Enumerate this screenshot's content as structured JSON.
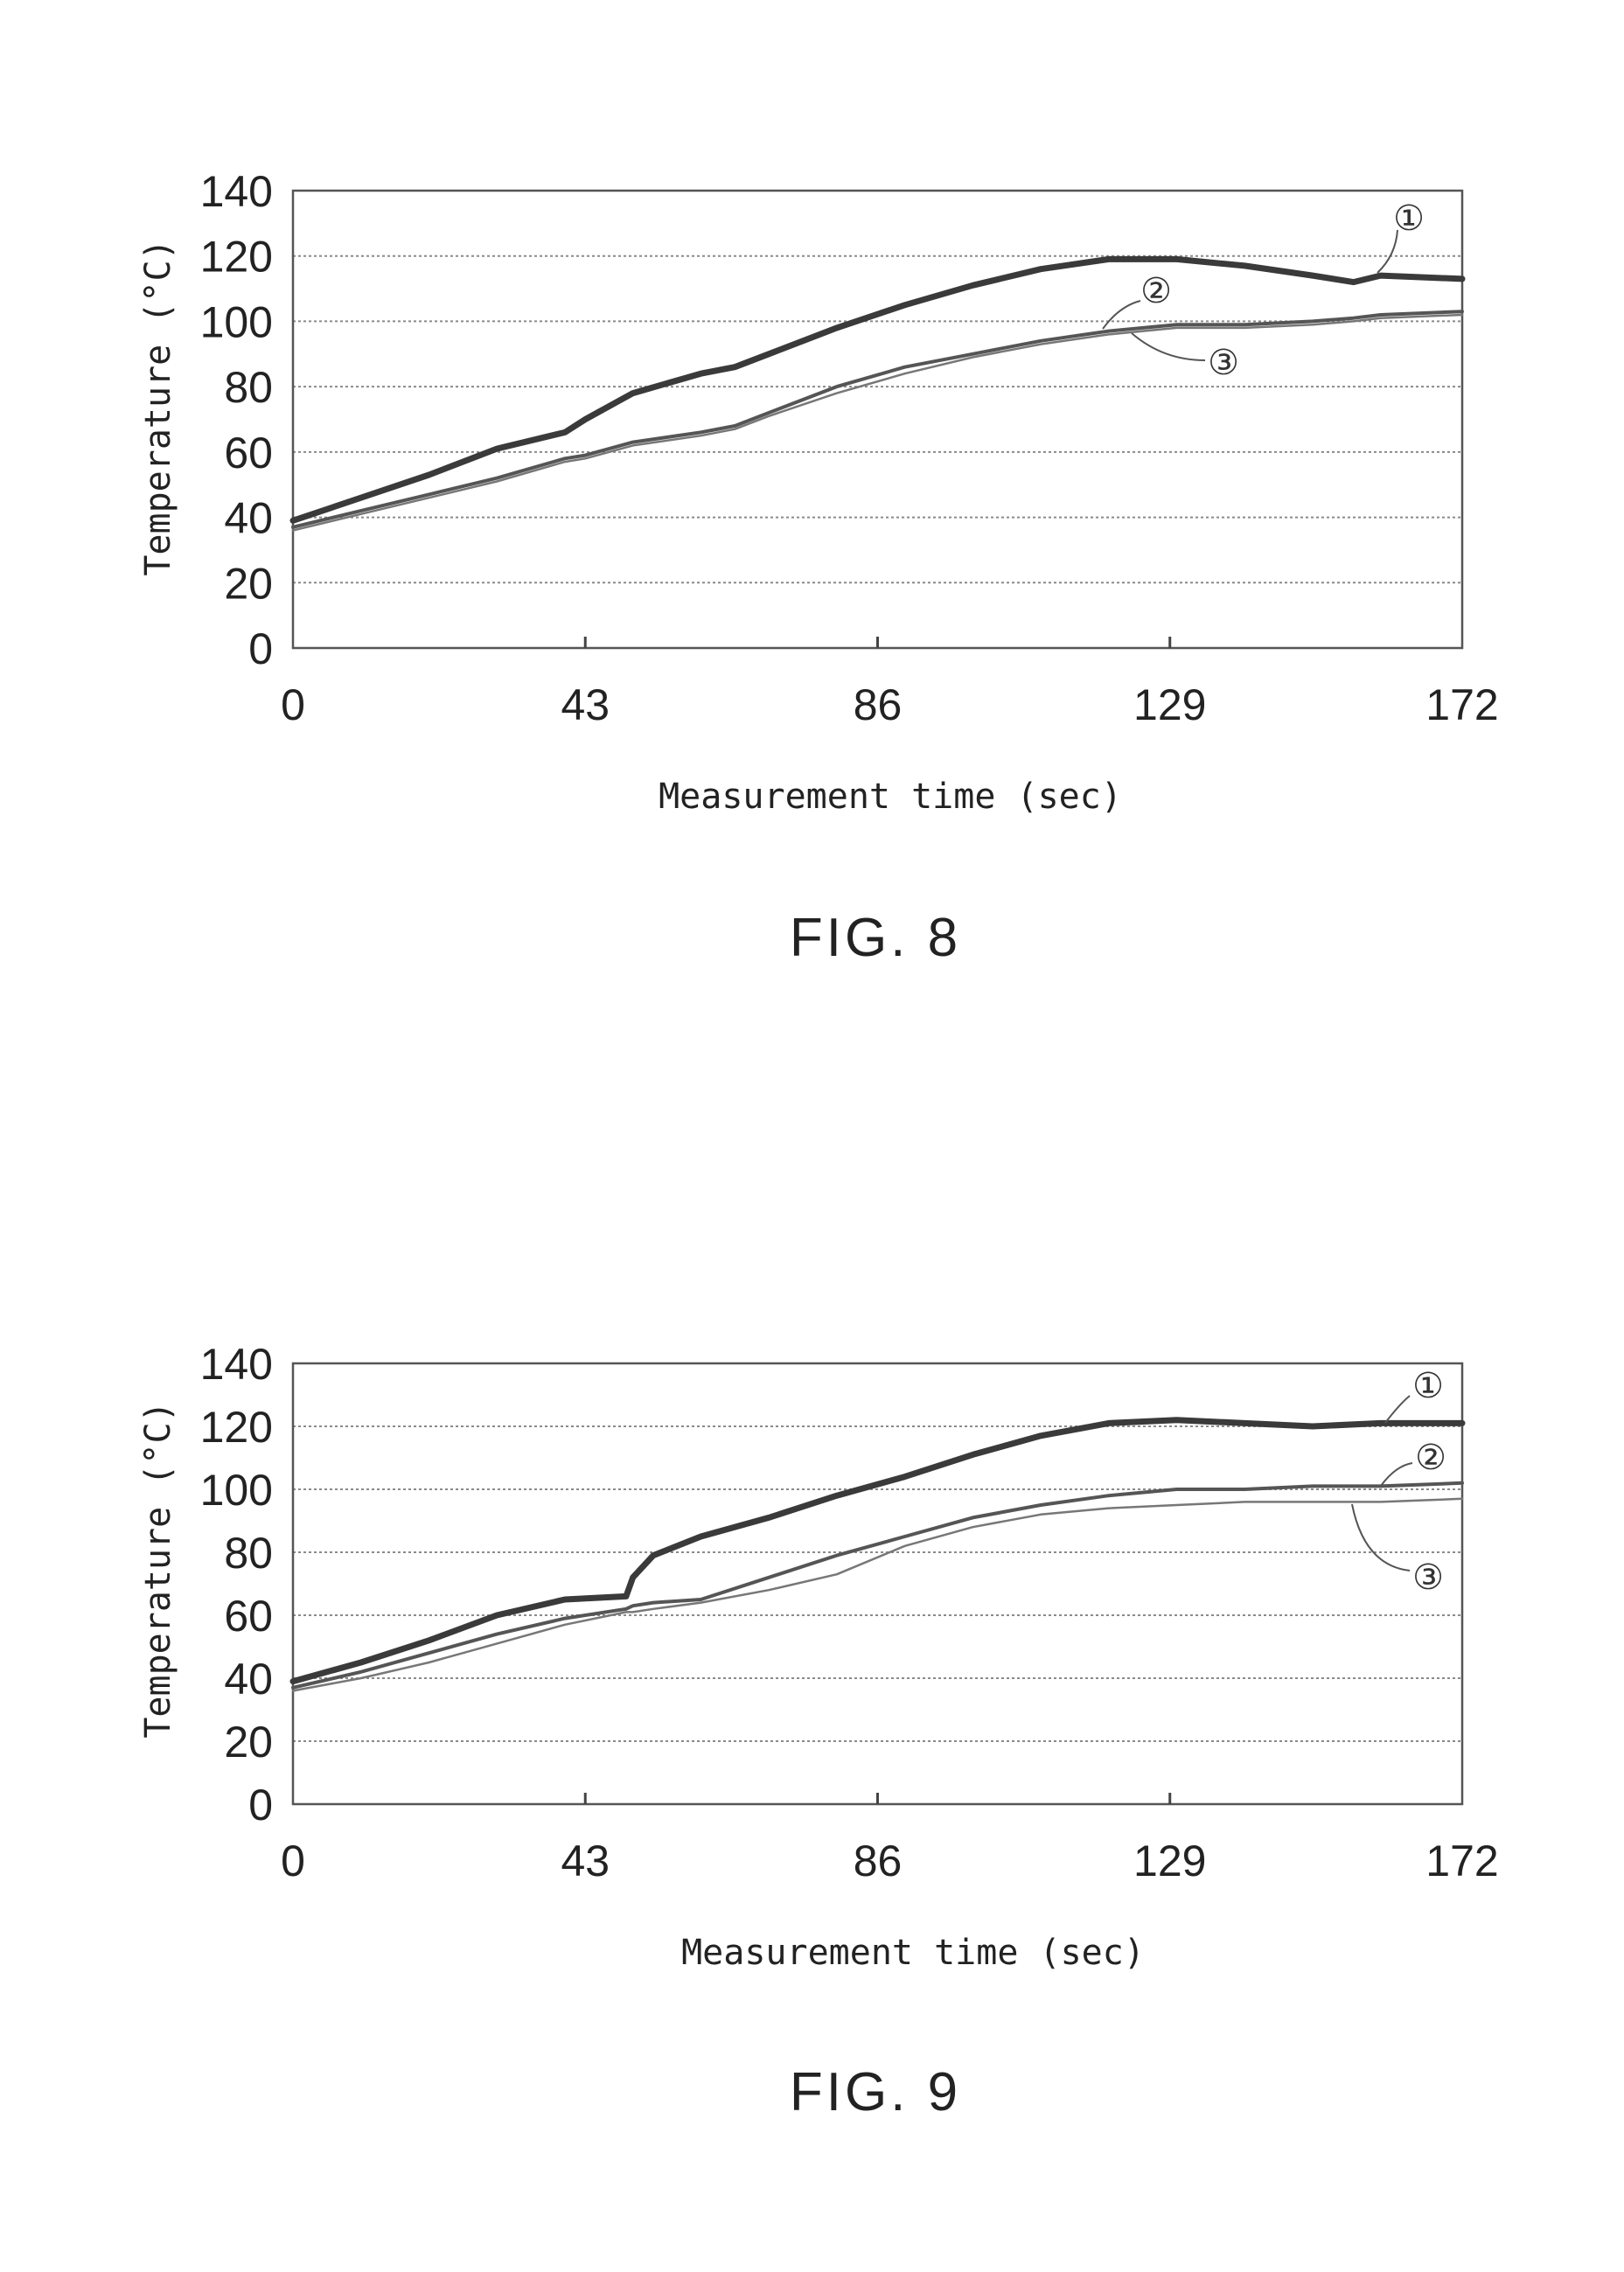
{
  "chart_data": [
    {
      "type": "line",
      "caption": "FIG. 8",
      "xlabel": "Measurement time (sec)",
      "ylabel": "Temperature (°C)",
      "xlim": [
        0,
        172
      ],
      "ylim": [
        0,
        140
      ],
      "x_ticks": [
        0,
        43,
        86,
        129,
        172
      ],
      "y_ticks": [
        0,
        20,
        40,
        60,
        80,
        100,
        120,
        140
      ],
      "grid": true,
      "x": [
        0,
        10,
        20,
        30,
        40,
        43,
        50,
        60,
        65,
        70,
        80,
        90,
        100,
        110,
        120,
        130,
        140,
        150,
        156,
        160,
        172
      ],
      "series": [
        {
          "name": "①",
          "values": [
            39,
            46,
            53,
            61,
            66,
            70,
            78,
            84,
            86,
            90,
            98,
            105,
            111,
            116,
            119,
            119,
            117,
            114,
            112,
            114,
            113
          ]
        },
        {
          "name": "②",
          "values": [
            37,
            42,
            47,
            52,
            58,
            59,
            63,
            66,
            68,
            72,
            80,
            86,
            90,
            94,
            97,
            99,
            99,
            100,
            101,
            102,
            103
          ]
        },
        {
          "name": "③",
          "values": [
            36,
            41,
            46,
            51,
            57,
            58,
            62,
            65,
            67,
            71,
            78,
            84,
            89,
            93,
            96,
            98,
            98,
            99,
            100,
            101,
            102
          ]
        }
      ]
    },
    {
      "type": "line",
      "caption": "FIG. 9",
      "xlabel": "Measurement time (sec)",
      "ylabel": "Temperature (°C)",
      "xlim": [
        0,
        172
      ],
      "ylim": [
        0,
        140
      ],
      "x_ticks": [
        0,
        43,
        86,
        129,
        172
      ],
      "y_ticks": [
        0,
        20,
        40,
        60,
        80,
        100,
        120,
        140
      ],
      "grid": true,
      "x": [
        0,
        10,
        20,
        30,
        40,
        49,
        50,
        53,
        60,
        70,
        80,
        90,
        100,
        110,
        120,
        130,
        140,
        150,
        160,
        172
      ],
      "series": [
        {
          "name": "①",
          "values": [
            39,
            45,
            52,
            60,
            65,
            66,
            72,
            79,
            85,
            91,
            98,
            104,
            111,
            117,
            121,
            122,
            121,
            120,
            121,
            121
          ]
        },
        {
          "name": "②",
          "values": [
            37,
            42,
            48,
            54,
            59,
            62,
            63,
            64,
            65,
            72,
            79,
            85,
            91,
            95,
            98,
            100,
            100,
            101,
            101,
            102
          ]
        },
        {
          "name": "③",
          "values": [
            36,
            40,
            45,
            51,
            57,
            61,
            61,
            62,
            64,
            68,
            73,
            82,
            88,
            92,
            94,
            95,
            96,
            96,
            96,
            97
          ]
        }
      ]
    }
  ]
}
